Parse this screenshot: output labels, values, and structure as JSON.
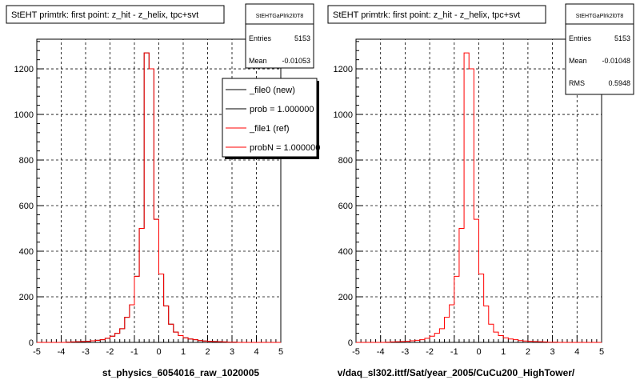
{
  "chart_data": [
    {
      "type": "histogram",
      "title": "StEHT primtrk: first point: z_hit - z_helix, tpc+svt",
      "xlabel": "st_physics_6054016_raw_1020005",
      "ylabel": "",
      "xlim": [
        -5,
        5
      ],
      "ylim": [
        0,
        1330
      ],
      "grid": true,
      "x_ticks": [
        "-5",
        "-4",
        "-3",
        "-2",
        "-1",
        "0",
        "1",
        "2",
        "3",
        "4",
        "5"
      ],
      "y_ticks": [
        "0",
        "200",
        "400",
        "600",
        "800",
        "1000",
        "1200"
      ],
      "bin_edges_start": -5,
      "bin_width": 0.2,
      "series": [
        {
          "name": "_file0 (new)",
          "color": "#000000",
          "values": [
            0,
            0,
            0,
            0,
            0,
            0,
            1,
            2,
            3,
            4,
            5,
            7,
            9,
            12,
            18,
            27,
            40,
            60,
            110,
            165,
            290,
            500,
            1270,
            1200,
            540,
            300,
            160,
            80,
            45,
            30,
            20,
            15,
            12,
            8,
            6,
            5,
            4,
            3,
            2,
            1,
            1,
            0,
            0,
            0,
            0,
            0,
            0,
            0,
            0,
            0
          ]
        },
        {
          "name": "_file1 (ref)",
          "color": "#ff0000",
          "values": [
            0,
            0,
            0,
            0,
            0,
            0,
            1,
            2,
            3,
            4,
            5,
            7,
            9,
            12,
            18,
            27,
            40,
            60,
            110,
            165,
            290,
            500,
            1270,
            1200,
            540,
            300,
            160,
            80,
            45,
            30,
            20,
            15,
            12,
            8,
            6,
            5,
            4,
            3,
            2,
            1,
            1,
            0,
            0,
            0,
            0,
            0,
            0,
            0,
            0,
            0
          ]
        }
      ],
      "stats": {
        "name": "StEHTGaPlrk2l0T8",
        "rows": [
          {
            "label": "Entries",
            "value": "5153"
          },
          {
            "label": "Mean",
            "value": "-0.01053"
          }
        ]
      },
      "legend": {
        "position": "top-right",
        "entries": [
          {
            "label": "_file0 (new)",
            "color": "#000000"
          },
          {
            "label": "prob = 1.000000",
            "color": "#000000"
          },
          {
            "label": "_file1 (ref)",
            "color": "#ff0000"
          },
          {
            "label": "probN = 1.000000",
            "color": "#ff0000"
          }
        ]
      }
    },
    {
      "type": "histogram",
      "title": "StEHT primtrk: first point: z_hit - z_helix, tpc+svt",
      "xlabel": "v/daq_sl302.ittf/Sat/year_2005/CuCu200_HighTower/",
      "ylabel": "",
      "xlim": [
        -5,
        5
      ],
      "ylim": [
        0,
        1330
      ],
      "grid": true,
      "x_ticks": [
        "-5",
        "-4",
        "-3",
        "-2",
        "-1",
        "0",
        "1",
        "2",
        "3",
        "4",
        "5"
      ],
      "y_ticks": [
        "0",
        "200",
        "400",
        "600",
        "800",
        "1000",
        "1200"
      ],
      "bin_edges_start": -5,
      "bin_width": 0.2,
      "series": [
        {
          "name": "",
          "color": "#ff0000",
          "values": [
            0,
            0,
            0,
            0,
            0,
            0,
            1,
            2,
            3,
            4,
            5,
            7,
            9,
            12,
            18,
            27,
            40,
            60,
            110,
            165,
            290,
            500,
            1270,
            1200,
            540,
            300,
            160,
            80,
            45,
            30,
            20,
            15,
            12,
            8,
            6,
            5,
            4,
            3,
            2,
            1,
            1,
            0,
            0,
            0,
            0,
            0,
            0,
            0,
            0,
            0
          ]
        }
      ],
      "stats": {
        "name": "StEHTGaPlrk2l0T8",
        "rows": [
          {
            "label": "Entries",
            "value": "5153"
          },
          {
            "label": "Mean",
            "value": "-0.01048"
          },
          {
            "label": "RMS",
            "value": "0.5948"
          }
        ]
      }
    }
  ]
}
